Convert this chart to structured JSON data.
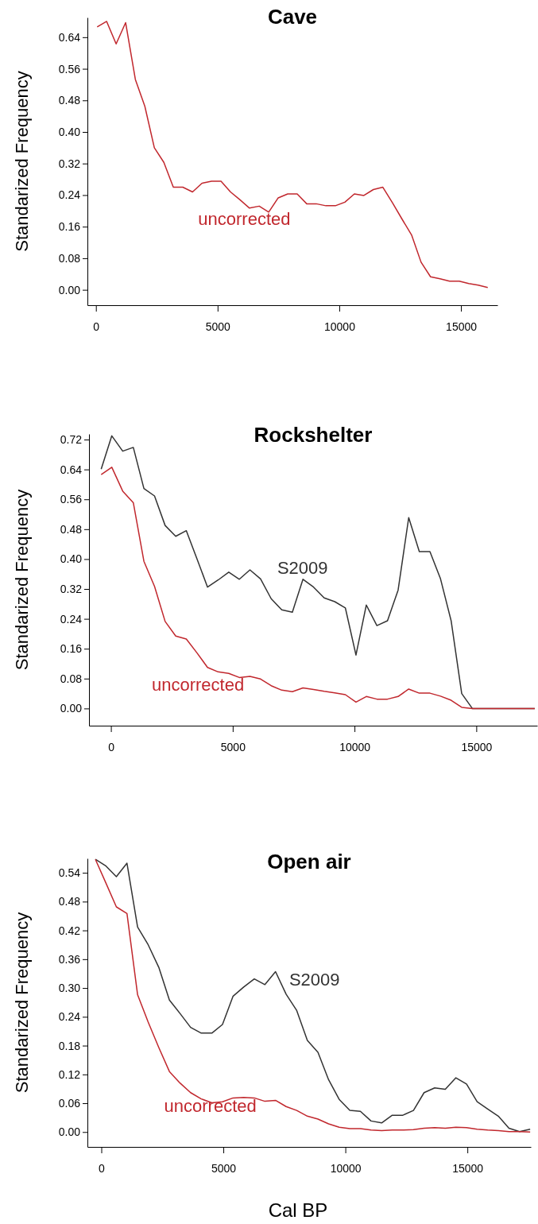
{
  "chart_data": [
    {
      "type": "line",
      "title": "Cave",
      "ylabel": "Standarized Frequency",
      "xlim": [
        -350,
        16500
      ],
      "ylim": [
        -0.039,
        0.69
      ],
      "xticks": [
        0,
        5000,
        10000,
        15000
      ],
      "yticks": [
        {
          "value": 0,
          "label": "0.00"
        },
        {
          "value": 0.08,
          "label": "0.08"
        },
        {
          "value": 0.16,
          "label": "0.16"
        },
        {
          "value": 0.24,
          "label": "0.24"
        },
        {
          "value": 0.32,
          "label": "0.32"
        },
        {
          "value": 0.4,
          "label": "0.40"
        },
        {
          "value": 0.48,
          "label": "0.48"
        },
        {
          "value": 0.56,
          "label": "0.56"
        },
        {
          "value": 0.64,
          "label": "0.64"
        }
      ],
      "x": [
        50,
        440,
        830,
        1220,
        1620,
        2010,
        2400,
        2790,
        3180,
        3570,
        3970,
        4360,
        4750,
        5140,
        5530,
        5920,
        6310,
        6710,
        7100,
        7490,
        7880,
        8270,
        8660,
        9050,
        9450,
        9840,
        10230,
        10620,
        11010,
        11400,
        11790,
        12190,
        12580,
        12970,
        13360,
        13750,
        14140,
        14530,
        14930,
        15320,
        15710,
        16100
      ],
      "series": [
        {
          "name": "uncorrected",
          "color": "#c1272d",
          "values": [
            0.666,
            0.68,
            0.623,
            0.677,
            0.533,
            0.465,
            0.36,
            0.323,
            0.26,
            0.26,
            0.248,
            0.27,
            0.275,
            0.275,
            0.248,
            0.228,
            0.207,
            0.212,
            0.197,
            0.233,
            0.243,
            0.243,
            0.218,
            0.218,
            0.213,
            0.213,
            0.222,
            0.243,
            0.239,
            0.254,
            0.26,
            0.22,
            0.179,
            0.139,
            0.07,
            0.033,
            0.028,
            0.022,
            0.022,
            0.016,
            0.012,
            0.006
          ]
        }
      ]
    },
    {
      "type": "line",
      "title": "Rockshelter",
      "ylabel": "Standarized Frequency",
      "xlim": [
        -900,
        17500
      ],
      "ylim": [
        -0.046,
        0.735
      ],
      "xticks": [
        0,
        5000,
        10000,
        15000
      ],
      "yticks": [
        {
          "value": 0,
          "label": "0.00"
        },
        {
          "value": 0.08,
          "label": "0.08"
        },
        {
          "value": 0.16,
          "label": "0.16"
        },
        {
          "value": 0.24,
          "label": "0.24"
        },
        {
          "value": 0.32,
          "label": "0.32"
        },
        {
          "value": 0.4,
          "label": "0.40"
        },
        {
          "value": 0.48,
          "label": "0.48"
        },
        {
          "value": 0.56,
          "label": "0.56"
        },
        {
          "value": 0.64,
          "label": "0.64"
        },
        {
          "value": 0.72,
          "label": "0.72"
        }
      ],
      "x": [
        -400,
        36,
        484,
        919,
        1354,
        1790,
        2225,
        2660,
        3095,
        3531,
        3966,
        4401,
        4837,
        5272,
        5707,
        6143,
        6578,
        7013,
        7449,
        7884,
        8319,
        8755,
        9190,
        9625,
        10060,
        10484,
        10919,
        11354,
        11790,
        12225,
        12660,
        13096,
        13531,
        13966,
        14401,
        14837,
        17400
      ],
      "series": [
        {
          "name": "S2009",
          "color": "#333333",
          "values": [
            0.641,
            0.73,
            0.689,
            0.699,
            0.589,
            0.569,
            0.49,
            0.461,
            0.476,
            0.401,
            0.325,
            0.344,
            0.365,
            0.346,
            0.371,
            0.347,
            0.294,
            0.264,
            0.258,
            0.346,
            0.325,
            0.296,
            0.286,
            0.269,
            0.143,
            0.277,
            0.222,
            0.235,
            0.317,
            0.511,
            0.42,
            0.42,
            0.347,
            0.235,
            0.04,
            0,
            0
          ]
        },
        {
          "name": "uncorrected",
          "color": "#c1272d",
          "values": [
            0.626,
            0.646,
            0.582,
            0.551,
            0.394,
            0.327,
            0.233,
            0.194,
            0.186,
            0.149,
            0.11,
            0.098,
            0.094,
            0.083,
            0.086,
            0.079,
            0.061,
            0.049,
            0.045,
            0.055,
            0.051,
            0.046,
            0.042,
            0.037,
            0.017,
            0.032,
            0.025,
            0.025,
            0.032,
            0.052,
            0.041,
            0.041,
            0.033,
            0.022,
            0.003,
            0,
            0
          ]
        }
      ]
    },
    {
      "type": "line",
      "title": "Open air",
      "ylabel": "Standarized Frequency",
      "xlabel": "Cal BP",
      "xlim": [
        -570,
        17600
      ],
      "ylim": [
        -0.031,
        0.57
      ],
      "xticks": [
        0,
        5000,
        10000,
        15000
      ],
      "yticks": [
        {
          "value": 0,
          "label": "0.00"
        },
        {
          "value": 0.06,
          "label": "0.06"
        },
        {
          "value": 0.12,
          "label": "0.12"
        },
        {
          "value": 0.18,
          "label": "0.18"
        },
        {
          "value": 0.24,
          "label": "0.24"
        },
        {
          "value": 0.3,
          "label": "0.30"
        },
        {
          "value": 0.36,
          "label": "0.36"
        },
        {
          "value": 0.42,
          "label": "0.42"
        },
        {
          "value": 0.48,
          "label": "0.48"
        },
        {
          "value": 0.54,
          "label": "0.54"
        }
      ],
      "x": [
        -242,
        193,
        616,
        1051,
        1486,
        1920,
        2355,
        2790,
        3225,
        3659,
        4094,
        4529,
        4964,
        5399,
        5833,
        6268,
        6703,
        7138,
        7572,
        8007,
        8442,
        8877,
        9312,
        9746,
        10181,
        10616,
        11051,
        11486,
        11920,
        12355,
        12790,
        13225,
        13659,
        14094,
        14529,
        14964,
        15399,
        15833,
        16268,
        16703,
        17138,
        17572
      ],
      "series": [
        {
          "name": "S2009",
          "color": "#333333",
          "values": [
            0.568,
            0.554,
            0.532,
            0.56,
            0.427,
            0.39,
            0.343,
            0.275,
            0.247,
            0.218,
            0.206,
            0.206,
            0.224,
            0.283,
            0.302,
            0.319,
            0.307,
            0.334,
            0.287,
            0.253,
            0.191,
            0.166,
            0.109,
            0.068,
            0.045,
            0.043,
            0.023,
            0.019,
            0.035,
            0.035,
            0.045,
            0.082,
            0.092,
            0.089,
            0.113,
            0.1,
            0.063,
            0.048,
            0.033,
            0.008,
            0.001,
            0.006
          ]
        },
        {
          "name": "uncorrected",
          "color": "#c1272d",
          "values": [
            0.568,
            0.518,
            0.469,
            0.455,
            0.286,
            0.229,
            0.176,
            0.126,
            0.102,
            0.082,
            0.069,
            0.061,
            0.063,
            0.071,
            0.072,
            0.071,
            0.064,
            0.066,
            0.053,
            0.045,
            0.033,
            0.027,
            0.017,
            0.01,
            0.007,
            0.007,
            0.004,
            0.003,
            0.004,
            0.004,
            0.005,
            0.008,
            0.009,
            0.008,
            0.01,
            0.009,
            0.006,
            0.004,
            0.003,
            0.001,
            0.001,
            0
          ]
        }
      ]
    }
  ]
}
